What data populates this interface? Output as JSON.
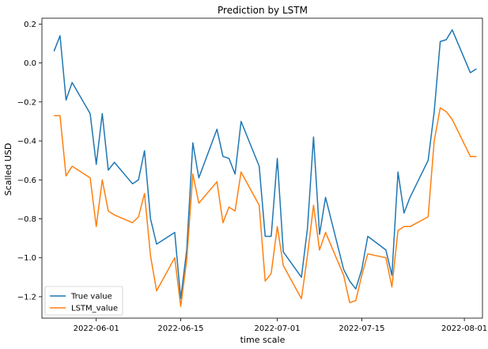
{
  "chart_data": {
    "type": "line",
    "title": "Prediction by LSTM",
    "xlabel": "time scale",
    "ylabel": "Scalled USD",
    "xlim": [
      "2022-05-23",
      "2022-08-04"
    ],
    "ylim": [
      -1.31,
      0.23
    ],
    "x_ticks": [
      "2022-06-01",
      "2022-06-15",
      "2022-07-01",
      "2022-07-15",
      "2022-08-01"
    ],
    "y_ticks": [
      0.2,
      0.0,
      -0.2,
      -0.4,
      -0.6,
      -0.8,
      -1.0,
      -1.2
    ],
    "y_tick_labels": [
      "0.2",
      "0.0",
      "−0.2",
      "−0.4",
      "−0.6",
      "−0.8",
      "−1.0",
      "−1.2"
    ],
    "grid": false,
    "legend_position": "lower-left",
    "series": [
      {
        "name": "True value",
        "color": "#1f77b4",
        "points": [
          [
            "2022-05-25",
            0.06
          ],
          [
            "2022-05-26",
            0.14
          ],
          [
            "2022-05-27",
            -0.19
          ],
          [
            "2022-05-28",
            -0.1
          ],
          [
            "2022-05-31",
            -0.26
          ],
          [
            "2022-06-01",
            -0.52
          ],
          [
            "2022-06-02",
            -0.26
          ],
          [
            "2022-06-03",
            -0.55
          ],
          [
            "2022-06-04",
            -0.51
          ],
          [
            "2022-06-07",
            -0.62
          ],
          [
            "2022-06-08",
            -0.6
          ],
          [
            "2022-06-09",
            -0.45
          ],
          [
            "2022-06-10",
            -0.8
          ],
          [
            "2022-06-11",
            -0.93
          ],
          [
            "2022-06-14",
            -0.87
          ],
          [
            "2022-06-15",
            -1.21
          ],
          [
            "2022-06-16",
            -0.96
          ],
          [
            "2022-06-17",
            -0.41
          ],
          [
            "2022-06-18",
            -0.59
          ],
          [
            "2022-06-21",
            -0.34
          ],
          [
            "2022-06-22",
            -0.48
          ],
          [
            "2022-06-23",
            -0.49
          ],
          [
            "2022-06-24",
            -0.57
          ],
          [
            "2022-06-25",
            -0.3
          ],
          [
            "2022-06-28",
            -0.53
          ],
          [
            "2022-06-29",
            -0.89
          ],
          [
            "2022-06-30",
            -0.89
          ],
          [
            "2022-07-01",
            -0.49
          ],
          [
            "2022-07-02",
            -0.97
          ],
          [
            "2022-07-05",
            -1.1
          ],
          [
            "2022-07-06",
            -0.85
          ],
          [
            "2022-07-07",
            -0.38
          ],
          [
            "2022-07-08",
            -0.88
          ],
          [
            "2022-07-09",
            -0.69
          ],
          [
            "2022-07-12",
            -1.06
          ],
          [
            "2022-07-13",
            -1.12
          ],
          [
            "2022-07-14",
            -1.16
          ],
          [
            "2022-07-15",
            -1.06
          ],
          [
            "2022-07-16",
            -0.89
          ],
          [
            "2022-07-19",
            -0.96
          ],
          [
            "2022-07-20",
            -1.09
          ],
          [
            "2022-07-21",
            -0.56
          ],
          [
            "2022-07-22",
            -0.77
          ],
          [
            "2022-07-23",
            -0.69
          ],
          [
            "2022-07-26",
            -0.5
          ],
          [
            "2022-07-27",
            -0.25
          ],
          [
            "2022-07-28",
            0.11
          ],
          [
            "2022-07-29",
            0.12
          ],
          [
            "2022-07-30",
            0.17
          ],
          [
            "2022-08-02",
            -0.05
          ],
          [
            "2022-08-03",
            -0.03
          ]
        ]
      },
      {
        "name": "LSTM_value",
        "color": "#ff7f0e",
        "points": [
          [
            "2022-05-25",
            -0.27
          ],
          [
            "2022-05-26",
            -0.27
          ],
          [
            "2022-05-27",
            -0.58
          ],
          [
            "2022-05-28",
            -0.53
          ],
          [
            "2022-05-31",
            -0.59
          ],
          [
            "2022-06-01",
            -0.84
          ],
          [
            "2022-06-02",
            -0.6
          ],
          [
            "2022-06-03",
            -0.76
          ],
          [
            "2022-06-04",
            -0.78
          ],
          [
            "2022-06-07",
            -0.82
          ],
          [
            "2022-06-08",
            -0.79
          ],
          [
            "2022-06-09",
            -0.67
          ],
          [
            "2022-06-10",
            -0.99
          ],
          [
            "2022-06-11",
            -1.17
          ],
          [
            "2022-06-14",
            -1.0
          ],
          [
            "2022-06-15",
            -1.25
          ],
          [
            "2022-06-16",
            -1.01
          ],
          [
            "2022-06-17",
            -0.57
          ],
          [
            "2022-06-18",
            -0.72
          ],
          [
            "2022-06-21",
            -0.61
          ],
          [
            "2022-06-22",
            -0.82
          ],
          [
            "2022-06-23",
            -0.74
          ],
          [
            "2022-06-24",
            -0.76
          ],
          [
            "2022-06-25",
            -0.56
          ],
          [
            "2022-06-28",
            -0.73
          ],
          [
            "2022-06-29",
            -1.12
          ],
          [
            "2022-06-30",
            -1.08
          ],
          [
            "2022-07-01",
            -0.84
          ],
          [
            "2022-07-02",
            -1.04
          ],
          [
            "2022-07-05",
            -1.21
          ],
          [
            "2022-07-06",
            -0.99
          ],
          [
            "2022-07-07",
            -0.73
          ],
          [
            "2022-07-08",
            -0.96
          ],
          [
            "2022-07-09",
            -0.87
          ],
          [
            "2022-07-12",
            -1.09
          ],
          [
            "2022-07-13",
            -1.23
          ],
          [
            "2022-07-14",
            -1.22
          ],
          [
            "2022-07-15",
            -1.09
          ],
          [
            "2022-07-16",
            -0.98
          ],
          [
            "2022-07-19",
            -1.0
          ],
          [
            "2022-07-20",
            -1.15
          ],
          [
            "2022-07-21",
            -0.86
          ],
          [
            "2022-07-22",
            -0.84
          ],
          [
            "2022-07-23",
            -0.84
          ],
          [
            "2022-07-26",
            -0.79
          ],
          [
            "2022-07-27",
            -0.4
          ],
          [
            "2022-07-28",
            -0.23
          ],
          [
            "2022-07-29",
            -0.25
          ],
          [
            "2022-07-30",
            -0.29
          ],
          [
            "2022-08-02",
            -0.48
          ],
          [
            "2022-08-03",
            -0.48
          ]
        ]
      }
    ]
  }
}
